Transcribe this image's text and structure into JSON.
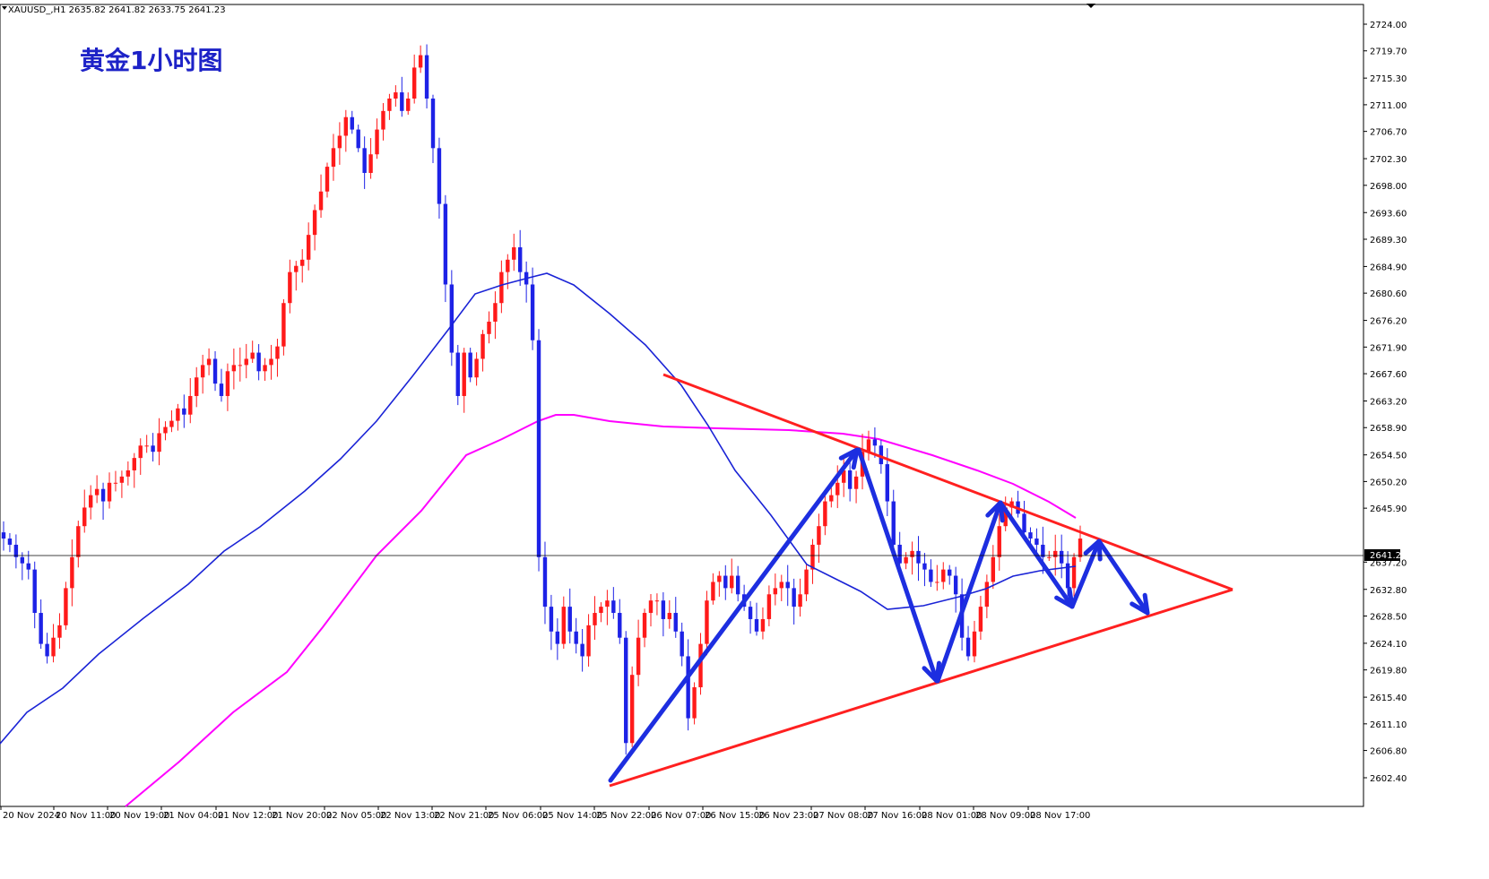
{
  "header": {
    "symbol_line": "XAUUSD_,H1  2635.82 2641.82 2633.75 2641.23",
    "title_overlay": "黄金1小时图"
  },
  "price_axis": {
    "ticks": [
      "2724.00",
      "2719.70",
      "2715.30",
      "2711.00",
      "2706.70",
      "2702.30",
      "2698.00",
      "2693.60",
      "2689.30",
      "2684.90",
      "2680.60",
      "2676.20",
      "2671.90",
      "2667.60",
      "2663.20",
      "2658.90",
      "2654.50",
      "2650.20",
      "2645.90",
      "2641.23",
      "2637.20",
      "2632.80",
      "2628.50",
      "2624.10",
      "2619.80",
      "2615.40",
      "2611.10",
      "2606.80",
      "2602.40"
    ],
    "current_price_label": "2641.23"
  },
  "time_axis": {
    "ticks": [
      "20 Nov 2024",
      "20 Nov 11:00",
      "20 Nov 19:00",
      "21 Nov 04:00",
      "21 Nov 12:00",
      "21 Nov 20:00",
      "22 Nov 05:00",
      "22 Nov 13:00",
      "22 Nov 21:00",
      "25 Nov 06:00",
      "25 Nov 14:00",
      "25 Nov 22:00",
      "26 Nov 07:00",
      "26 Nov 15:00",
      "26 Nov 23:00",
      "27 Nov 08:00",
      "27 Nov 16:00",
      "28 Nov 01:00",
      "28 Nov 09:00",
      "28 Nov 17:00"
    ]
  },
  "colors": {
    "bull": "#ff1a1a",
    "bear": "#1d22e6",
    "ma_fast": "#1a23d6",
    "ma_slow": "#ff00ff",
    "triangle": "#ff2020",
    "arrows": "#1d2ee0",
    "title": "#1d22c7"
  },
  "chart_data": {
    "type": "candlestick",
    "instrument": "XAUUSD_",
    "timeframe": "H1",
    "ohlc_current": {
      "open": 2635.82,
      "high": 2641.82,
      "low": 2633.75,
      "close": 2641.23
    },
    "ylim": [
      2602.4,
      2724.0
    ],
    "x_labels": [
      "20 Nov 2024",
      "20 Nov 11:00",
      "20 Nov 19:00",
      "21 Nov 04:00",
      "21 Nov 12:00",
      "21 Nov 20:00",
      "22 Nov 05:00",
      "22 Nov 13:00",
      "22 Nov 21:00",
      "25 Nov 06:00",
      "25 Nov 14:00",
      "25 Nov 22:00",
      "26 Nov 07:00",
      "26 Nov 15:00",
      "26 Nov 23:00",
      "27 Nov 08:00",
      "27 Nov 16:00",
      "28 Nov 01:00",
      "28 Nov 09:00",
      "28 Nov 17:00"
    ],
    "close_path": [
      2641,
      2640,
      2638,
      2637,
      2636,
      2629,
      2624,
      2622,
      2625,
      2627,
      2633,
      2638,
      2643,
      2646,
      2648,
      2649,
      2647,
      2650,
      2650,
      2651,
      2652,
      2654,
      2656,
      2656,
      2655,
      2658,
      2659,
      2660,
      2662,
      2661,
      2664,
      2667,
      2669,
      2670,
      2666,
      2664,
      2668,
      2669,
      2669,
      2670,
      2671,
      2668,
      2669,
      2670,
      2672,
      2679,
      2684,
      2685,
      2686,
      2690,
      2694,
      2697,
      2701,
      2704,
      2706,
      2709,
      2707,
      2704,
      2700,
      2703,
      2707,
      2710,
      2712,
      2713,
      2710,
      2712,
      2717,
      2719,
      2712,
      2704,
      2695,
      2682,
      2671,
      2664,
      2671,
      2667,
      2670,
      2674,
      2676,
      2679,
      2684,
      2686,
      2688,
      2684,
      2682,
      2673,
      2638,
      2630,
      2626,
      2624,
      2630,
      2626,
      2624,
      2622,
      2627,
      2629,
      2630,
      2631,
      2629,
      2625,
      2608,
      2619,
      2625,
      2629,
      2631,
      2631,
      2628,
      2629,
      2626,
      2622,
      2612,
      2617,
      2624,
      2631,
      2634,
      2635,
      2633,
      2635,
      2632,
      2630,
      2628,
      2626,
      2628,
      2632,
      2633,
      2634,
      2633,
      2630,
      2632,
      2636,
      2640,
      2643,
      2647,
      2648,
      2650,
      2652,
      2649,
      2651,
      2655,
      2657,
      2656,
      2653,
      2647,
      2640,
      2637,
      2638,
      2639,
      2637,
      2636,
      2634,
      2634,
      2636,
      2635,
      2632,
      2625,
      2622,
      2626,
      2630,
      2634,
      2638,
      2643,
      2646,
      2647,
      2645,
      2642,
      2641,
      2640,
      2638,
      2638,
      2639,
      2637,
      2633,
      2638,
      2641
    ]
  },
  "annotations": {
    "triangle_upper_line": "red descending resistance",
    "triangle_lower_line": "red ascending support",
    "wave_arrows": "blue zigzag arrows"
  }
}
